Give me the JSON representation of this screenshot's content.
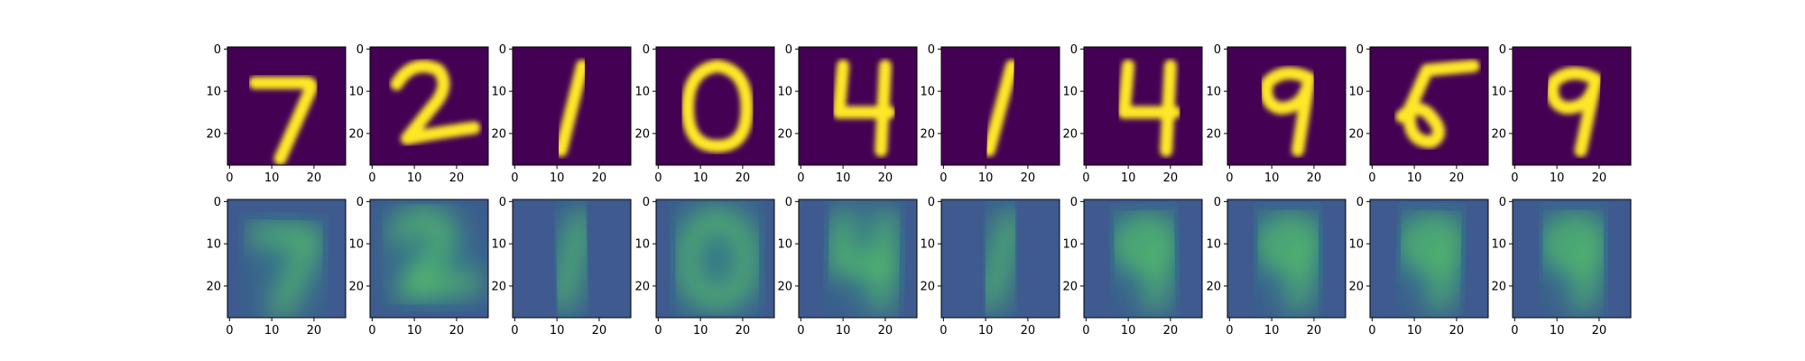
{
  "figure": {
    "background": "#ffffff",
    "rows": [
      {
        "role": "original",
        "digits": [
          "7",
          "2",
          "1",
          "0",
          "4",
          "1",
          "4",
          "9",
          "5",
          "9"
        ]
      },
      {
        "role": "reconstruction",
        "digits": [
          "7",
          "2",
          "1",
          "0",
          "4",
          "1",
          "9",
          "9",
          "9",
          "9"
        ]
      }
    ]
  },
  "chart_data": {
    "type": "heatmap",
    "layout": "2 rows x 10 columns of image panels",
    "colormap": "viridis",
    "colors": {
      "low": "#440154",
      "mid": "#31688e",
      "high": "#fde725",
      "reconstruction_bg": "#3e5a8e"
    },
    "image_shape": [
      28,
      28
    ],
    "xlim": [
      0,
      27
    ],
    "ylim": [
      27,
      0
    ],
    "xticks": [
      0,
      10,
      20
    ],
    "yticks": [
      0,
      10,
      20
    ],
    "xticklabels": [
      "0",
      "10",
      "20"
    ],
    "yticklabels": [
      "0",
      "10",
      "20"
    ],
    "title": "",
    "xlabel": "",
    "ylabel": ""
  }
}
